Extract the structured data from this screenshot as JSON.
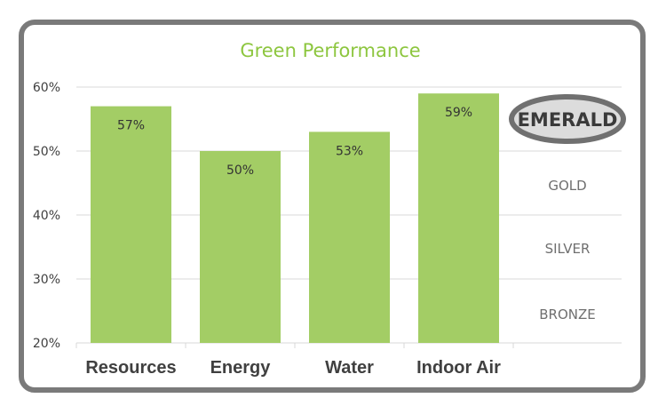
{
  "chart_data": {
    "type": "bar",
    "title": "Green Performance",
    "categories": [
      "Resources",
      "Energy",
      "Water",
      "Indoor Air"
    ],
    "values": [
      57,
      50,
      53,
      59
    ],
    "value_labels": [
      "57%",
      "50%",
      "53%",
      "59%"
    ],
    "ylim": [
      20,
      60
    ],
    "yticks": [
      20,
      30,
      40,
      50,
      60
    ],
    "ytick_labels": [
      "20%",
      "30%",
      "40%",
      "50%",
      "60%"
    ],
    "grid": true,
    "bar_color": "#a3cd65",
    "title_color": "#8dc63f",
    "rating_levels": [
      {
        "label": "EMERALD",
        "highlighted": true
      },
      {
        "label": "GOLD",
        "highlighted": false
      },
      {
        "label": "SILVER",
        "highlighted": false
      },
      {
        "label": "BRONZE",
        "highlighted": false
      }
    ]
  }
}
